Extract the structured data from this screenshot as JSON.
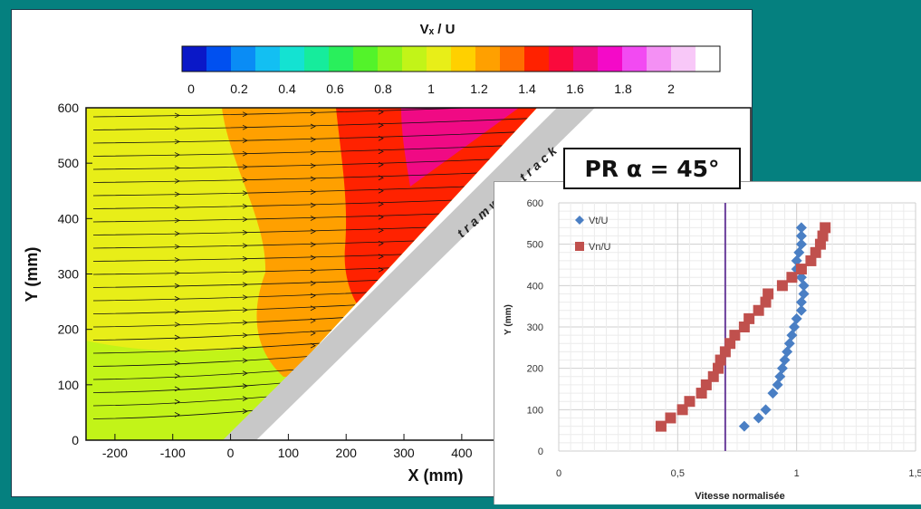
{
  "chart_data": [
    {
      "type": "heatmap",
      "colorbar_label": "Vₓ / U",
      "colorbar_ticks": [
        "0",
        "0.2",
        "0.4",
        "0.6",
        "0.8",
        "1",
        "1.2",
        "1.4",
        "1.6",
        "1.8",
        "2"
      ],
      "colorbar_range": [
        0,
        2
      ],
      "colorbar_colors": [
        "#0a18c8",
        "#0050f0",
        "#0a8cf5",
        "#13bff2",
        "#14e2d2",
        "#16ec9c",
        "#29ef5c",
        "#53f32a",
        "#8ef41c",
        "#c2f418",
        "#e8ee18",
        "#ffd000",
        "#ffa000",
        "#ff6e00",
        "#ff2200",
        "#fa0a3c",
        "#f00a84",
        "#f40ac8",
        "#f24af2",
        "#f490f4",
        "#f8c8f8",
        "#ffffff"
      ],
      "xlabel": "X (mm)",
      "ylabel": "Y (mm)",
      "xticks": [
        "-200",
        "-100",
        "0",
        "100",
        "200",
        "300",
        "400"
      ],
      "yticks": [
        "0",
        "100",
        "200",
        "300",
        "400",
        "500",
        "600"
      ],
      "xlim": [
        -250,
        900
      ],
      "ylim": [
        0,
        600
      ],
      "track_label": "tramway track",
      "region_values": [
        {
          "zone": "bottom-left",
          "value": 0.85
        },
        {
          "zone": "left",
          "value": 1.0
        },
        {
          "zone": "center",
          "value": 1.2
        },
        {
          "zone": "center-right",
          "value": 1.4
        },
        {
          "zone": "apex",
          "value": 1.6
        }
      ]
    },
    {
      "type": "scatter",
      "title": "PR α = 45°",
      "xlabel": "Vitesse normalisée",
      "ylabel": "Y (mm)",
      "xticks": [
        "0",
        "0,5",
        "1",
        "1,5"
      ],
      "yticks": [
        "0",
        "100",
        "200",
        "300",
        "400",
        "500",
        "600"
      ],
      "xlim": [
        0,
        1.5
      ],
      "ylim": [
        0,
        600
      ],
      "reference_line_x": 0.7,
      "series": [
        {
          "name": "Vt/U",
          "color": "#4a7fc4",
          "marker": "diamond",
          "points": [
            [
              0.78,
              60
            ],
            [
              0.84,
              80
            ],
            [
              0.87,
              100
            ],
            [
              0.9,
              140
            ],
            [
              0.92,
              160
            ],
            [
              0.93,
              180
            ],
            [
              0.94,
              200
            ],
            [
              0.95,
              220
            ],
            [
              0.96,
              240
            ],
            [
              0.97,
              260
            ],
            [
              0.98,
              280
            ],
            [
              0.99,
              300
            ],
            [
              1.0,
              320
            ],
            [
              1.02,
              340
            ],
            [
              1.02,
              360
            ],
            [
              1.03,
              380
            ],
            [
              1.03,
              400
            ],
            [
              1.02,
              420
            ],
            [
              1.0,
              440
            ],
            [
              1.0,
              460
            ],
            [
              1.01,
              480
            ],
            [
              1.02,
              500
            ],
            [
              1.02,
              520
            ],
            [
              1.02,
              540
            ]
          ]
        },
        {
          "name": "Vn/U",
          "color": "#c0504d",
          "marker": "square",
          "points": [
            [
              0.43,
              60
            ],
            [
              0.47,
              80
            ],
            [
              0.52,
              100
            ],
            [
              0.55,
              120
            ],
            [
              0.6,
              140
            ],
            [
              0.62,
              160
            ],
            [
              0.65,
              180
            ],
            [
              0.67,
              200
            ],
            [
              0.68,
              220
            ],
            [
              0.7,
              240
            ],
            [
              0.72,
              260
            ],
            [
              0.74,
              280
            ],
            [
              0.78,
              300
            ],
            [
              0.8,
              320
            ],
            [
              0.84,
              340
            ],
            [
              0.87,
              360
            ],
            [
              0.88,
              380
            ],
            [
              0.94,
              400
            ],
            [
              0.98,
              420
            ],
            [
              1.02,
              440
            ],
            [
              1.06,
              460
            ],
            [
              1.08,
              480
            ],
            [
              1.1,
              500
            ],
            [
              1.11,
              520
            ],
            [
              1.12,
              540
            ]
          ]
        }
      ]
    }
  ]
}
